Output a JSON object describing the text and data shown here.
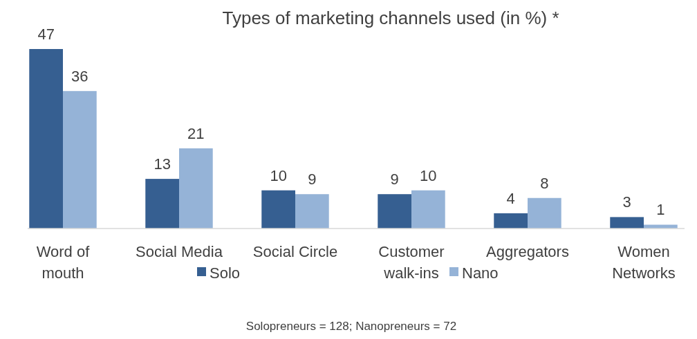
{
  "chart_data": {
    "type": "bar",
    "title": "Types of marketing channels used (in %) *",
    "categories": [
      "Word of mouth",
      "Social Media",
      "Social Circle",
      "Customer walk-ins",
      "Aggregators",
      "Women Networks"
    ],
    "series": [
      {
        "name": "Solo",
        "color": "#365f91",
        "values": [
          47,
          13,
          10,
          9,
          4,
          3
        ]
      },
      {
        "name": "Nano",
        "color": "#95b3d7",
        "values": [
          36,
          21,
          9,
          10,
          8,
          1
        ]
      }
    ],
    "data_labels": true,
    "legend": "bottom",
    "annotations": [
      "Solopreneurs = 128; Nanopreneurs = 72"
    ]
  }
}
